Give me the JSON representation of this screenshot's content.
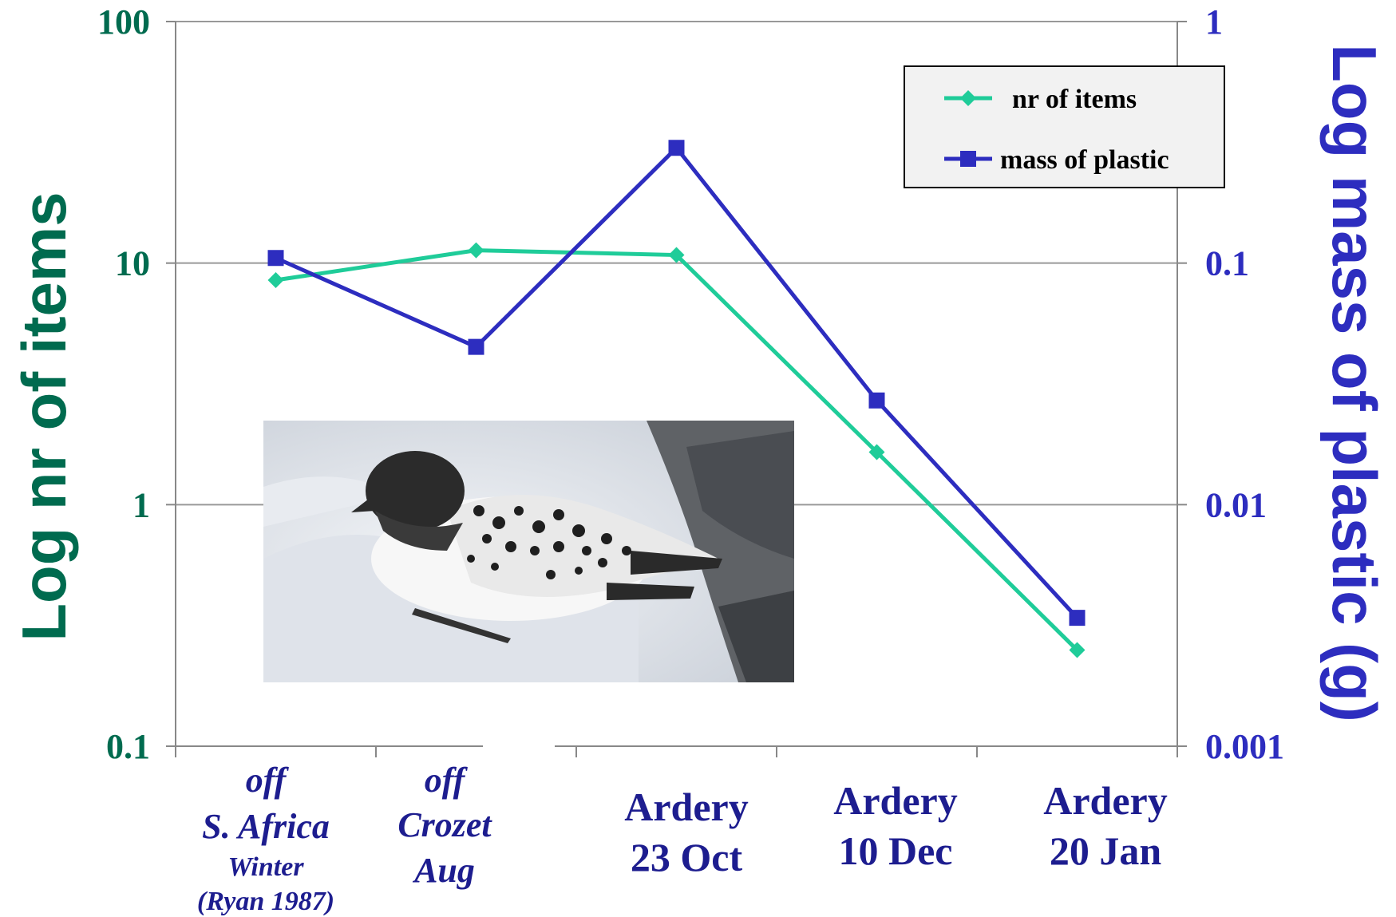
{
  "chart_data": {
    "type": "line",
    "categories": [
      {
        "lines": [
          "off",
          "S. Africa",
          "Winter",
          "(Ryan 1987)"
        ],
        "italic": true
      },
      {
        "lines": [
          "off",
          "Crozet",
          "Aug"
        ],
        "italic": true
      },
      {
        "lines": [
          "Ardery",
          "23 Oct"
        ],
        "italic": false
      },
      {
        "lines": [
          "Ardery",
          "10 Dec"
        ],
        "italic": false
      },
      {
        "lines": [
          "Ardery",
          "20 Jan"
        ],
        "italic": false
      }
    ],
    "series": [
      {
        "name": "nr of items",
        "axis": "left",
        "values": [
          8.5,
          11.3,
          10.8,
          1.65,
          0.25
        ],
        "color": "#1fcc99",
        "marker": "diamond"
      },
      {
        "name": "mass of plastic",
        "axis": "right",
        "values": [
          0.105,
          0.045,
          0.3,
          0.027,
          0.0034
        ],
        "color": "#2d2dbf",
        "marker": "square"
      }
    ],
    "y_left": {
      "label": "Log nr of items",
      "scale": "log",
      "ylim": [
        0.1,
        100
      ],
      "ticks": [
        "100",
        "10",
        "1",
        "0.1"
      ],
      "color": "#006b4f"
    },
    "y_right": {
      "label": "Log mass of plastic (g)",
      "scale": "log",
      "ylim": [
        0.001,
        1
      ],
      "ticks": [
        "1",
        "0.1",
        "0.01",
        "0.001"
      ],
      "color": "#2d2dbf"
    },
    "grid": true,
    "legend": "top-right",
    "inset_image": "cape-petrel-photo"
  }
}
